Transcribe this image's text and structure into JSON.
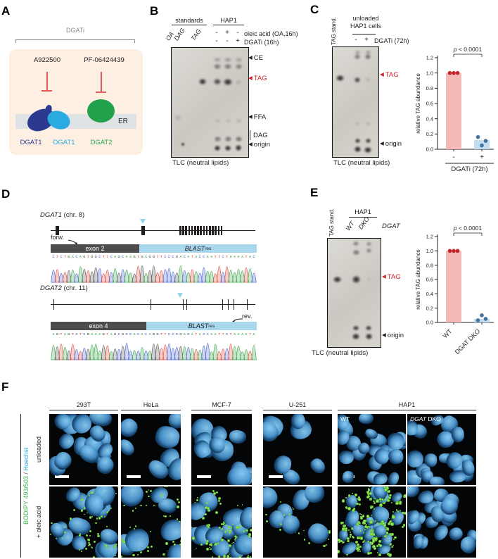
{
  "palette": {
    "accent_red": "#cb2026",
    "marker_cyan": "#8fd8ea",
    "bodipy_green": "#3cb54a",
    "hoechst_blue": "#27aae1",
    "dgat1_dark": "#2b3990",
    "dgat1_light": "#29abe2",
    "dgat2_green": "#22a14b"
  },
  "panels": {
    "A": {
      "label": "A",
      "bracket_label": "DGATi",
      "inhibitors": [
        "A922500",
        "PF-06424439"
      ],
      "er_label": "ER",
      "proteins": [
        {
          "label": "DGAT1",
          "color": "#2b3990"
        },
        {
          "label": "DGAT1",
          "color": "#29abe2"
        },
        {
          "label": "DGAT2",
          "color": "#22a14b"
        }
      ]
    },
    "B": {
      "label": "B",
      "group_standards": "standards",
      "group_cells": "HAP1",
      "standard_lanes": [
        "OA",
        "DAG",
        "TAG"
      ],
      "condition_rows": [
        {
          "signs": [
            "-",
            "+",
            "-"
          ],
          "label": "oleic acid (OA,16h)"
        },
        {
          "signs": [
            "-",
            "-",
            "+"
          ],
          "label": "DGATi (16h)"
        }
      ],
      "bands": {
        "ce": "CE",
        "tag": "TAG",
        "ffa": "FFA",
        "dag": "DAG",
        "origin": "origin"
      },
      "caption": "TLC (neutral lipids)"
    },
    "C": {
      "label": "C",
      "std_label": "TAG stand.",
      "header_line1": "unloaded",
      "header_line2": "HAP1 cells",
      "signs": [
        "-",
        "+"
      ],
      "condition": "DGATi (72h)",
      "tag_label": "TAG",
      "origin_label": "origin",
      "caption": "TLC (neutral lipids)"
    },
    "D": {
      "label": "D",
      "genes": [
        {
          "name": "DGAT1",
          "chr": " (chr. 8)",
          "primer": "forw.",
          "exon_label": "exon 2",
          "blast_label": "BLAST",
          "blast_sub": "res",
          "sequence": "CTCTGACAGTGGCTTCAGCAAGTGAGGTTCCCGACATACCAATTCTAAAATAC"
        },
        {
          "name": "DGAT2",
          "chr": " (chr. 11)",
          "primer": "rev.",
          "exon_label": "exon 4",
          "blast_label": "BLAST",
          "blast_sub": "res",
          "sequence": "AGTAGTCTCGAAAGTAGCGCCACACAGGTTCCCGACATACCAATTCTAAAATA"
        }
      ]
    },
    "E": {
      "label": "E",
      "std_label": "TAG stand.",
      "cell_line": "HAP1",
      "lanes": [
        "WT",
        "DKO"
      ],
      "gene_label": "DGAT",
      "tag_label": "TAG",
      "origin_label": "origin",
      "caption": "TLC (neutral lipids)"
    },
    "F": {
      "label": "F",
      "stain": {
        "bodipy": "BODIPY 493/503",
        "sep": " / ",
        "hoechst": "Hoechst"
      },
      "row_labels": [
        "unloaded",
        "+ oleic acid"
      ],
      "columns": [
        "293T",
        "HeLa",
        "MCF-7",
        "U-251",
        "HAP1"
      ],
      "overlays": {
        "wt": "WT",
        "dko_gene": "DGAT",
        "dko_rest": " DKO"
      }
    }
  },
  "chart_data": [
    {
      "type": "bar",
      "categories": [
        "-",
        "+"
      ],
      "values": [
        1.0,
        0.12
      ],
      "points": [
        [
          1.0,
          1.0,
          1.0
        ],
        [
          0.16,
          0.05,
          0.11
        ]
      ],
      "ylabel": "relative TAG abundance",
      "xlabel": "DGATi (72h)",
      "ylim": [
        0,
        1.2
      ],
      "yticks": [
        0,
        0.2,
        0.4,
        0.6,
        0.8,
        1.0,
        1.2
      ],
      "annotation": "p < 0.0001",
      "grid": false,
      "legend_position": "none",
      "bar_colors": [
        "#f5b9b7",
        "#c3ddf0"
      ],
      "dot_colors": [
        "#c1272d",
        "#44749f"
      ]
    },
    {
      "type": "bar",
      "categories": [
        "WT",
        "DGAT DKO"
      ],
      "values": [
        1.0,
        0.05
      ],
      "points": [
        [
          1.0,
          1.0,
          1.0
        ],
        [
          0.03,
          0.1,
          0.05
        ]
      ],
      "ylabel": "relative TAG abundance",
      "xlabel": "",
      "ylim": [
        0,
        1.2
      ],
      "yticks": [
        0,
        0.2,
        0.4,
        0.6,
        0.8,
        1.0,
        1.2
      ],
      "annotation": "p < 0.0001",
      "grid": false,
      "legend_position": "none",
      "bar_colors": [
        "#f5b9b7",
        "#c3ddf0"
      ],
      "dot_colors": [
        "#c1272d",
        "#44749f"
      ]
    }
  ]
}
